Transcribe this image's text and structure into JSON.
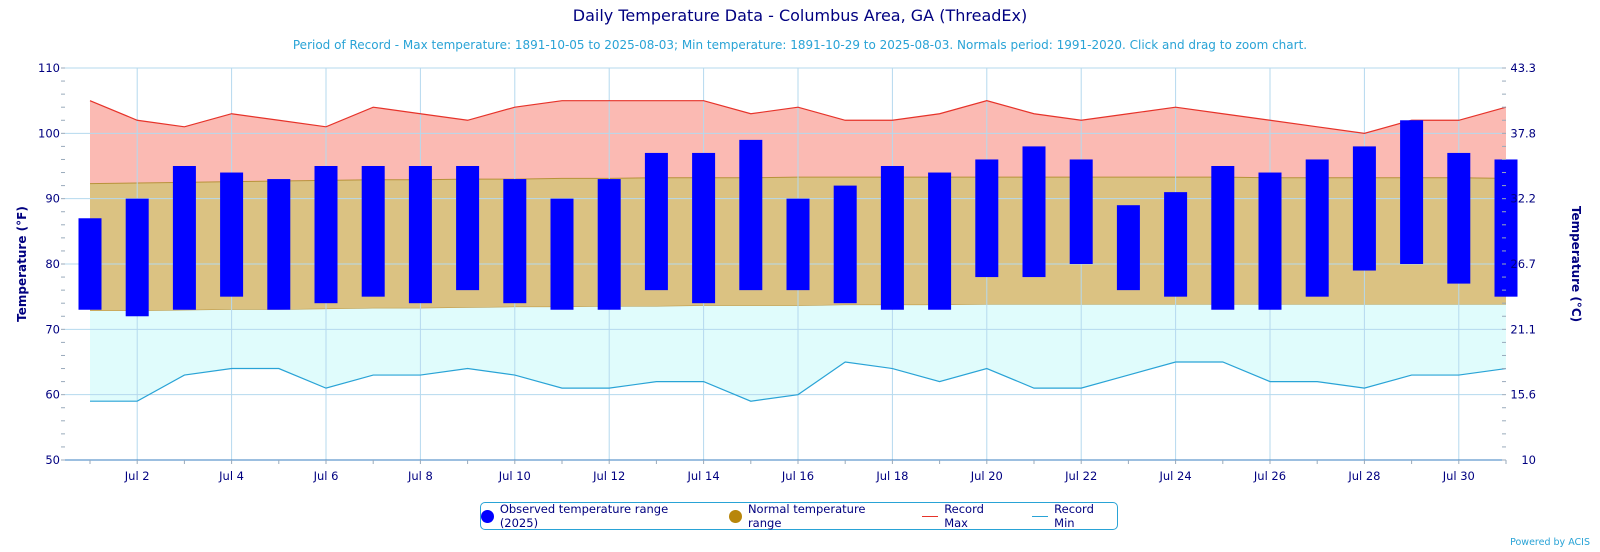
{
  "title": "Daily Temperature Data - Columbus Area, GA (ThreadEx)",
  "subtitle": "Period of Record - Max temperature: 1891-10-05 to 2025-08-03; Min temperature: 1891-10-29 to 2025-08-03. Normals period: 1991-2020. Click and drag to zoom chart.",
  "credit": "Powered by ACIS",
  "colors": {
    "observed": "#0000ff",
    "normal_fill": "#dbc282",
    "normal_legend": "#b8860b",
    "record_max_line": "#e6332a",
    "record_max_fill": "#fbbab3",
    "record_min_line": "#29a3d6",
    "record_min_fill": "#e0fcfc",
    "axis_text": "#000080",
    "grid": "#b5d9ee"
  },
  "chart_data": {
    "type": "bar",
    "days": [
      1,
      2,
      3,
      4,
      5,
      6,
      7,
      8,
      9,
      10,
      11,
      12,
      13,
      14,
      15,
      16,
      17,
      18,
      19,
      20,
      21,
      22,
      23,
      24,
      25,
      26,
      27,
      28,
      29,
      30,
      31
    ],
    "x_tick_labels": [
      "Jul 2",
      "Jul 4",
      "Jul 6",
      "Jul 8",
      "Jul 10",
      "Jul 12",
      "Jul 14",
      "Jul 16",
      "Jul 18",
      "Jul 20",
      "Jul 22",
      "Jul 24",
      "Jul 26",
      "Jul 28",
      "Jul 30"
    ],
    "x_tick_days": [
      2,
      4,
      6,
      8,
      10,
      12,
      14,
      16,
      18,
      20,
      22,
      24,
      26,
      28,
      30
    ],
    "ylabel_left": "Temperature (°F)",
    "ylabel_right": "Temperature (°C)",
    "ylim": [
      50,
      110
    ],
    "y_ticks_left": [
      "50",
      "60",
      "70",
      "80",
      "90",
      "100",
      "110"
    ],
    "y_ticks_right": [
      "10",
      "15.6",
      "21.1",
      "26.7",
      "32.2",
      "37.8",
      "43.3"
    ],
    "series": [
      {
        "name": "Observed temperature range (2025)",
        "low": [
          73,
          72,
          73,
          75,
          73,
          74,
          75,
          74,
          76,
          74,
          73,
          73,
          76,
          74,
          76,
          76,
          74,
          73,
          73,
          78,
          78,
          80,
          76,
          75,
          73,
          73,
          75,
          79,
          80,
          77,
          75
        ],
        "high": [
          87,
          90,
          95,
          94,
          93,
          95,
          95,
          95,
          95,
          93,
          90,
          93,
          97,
          97,
          99,
          90,
          92,
          95,
          94,
          96,
          98,
          96,
          89,
          91,
          95,
          94,
          96,
          98,
          102,
          97,
          96
        ]
      },
      {
        "name": "Normal temperature range",
        "low": [
          72.8,
          72.8,
          72.9,
          73.0,
          73.0,
          73.1,
          73.2,
          73.2,
          73.3,
          73.4,
          73.4,
          73.5,
          73.5,
          73.6,
          73.6,
          73.6,
          73.7,
          73.7,
          73.7,
          73.8,
          73.8,
          73.8,
          73.8,
          73.8,
          73.8,
          73.8,
          73.8,
          73.8,
          73.8,
          73.8,
          73.8
        ],
        "high": [
          92.3,
          92.4,
          92.5,
          92.6,
          92.7,
          92.8,
          92.9,
          92.9,
          93.0,
          93.0,
          93.1,
          93.1,
          93.2,
          93.2,
          93.2,
          93.3,
          93.3,
          93.3,
          93.3,
          93.3,
          93.3,
          93.3,
          93.3,
          93.3,
          93.3,
          93.2,
          93.2,
          93.2,
          93.2,
          93.2,
          93.1
        ]
      },
      {
        "name": "Record Max",
        "values": [
          105,
          102,
          101,
          103,
          102,
          101,
          104,
          103,
          102,
          104,
          105,
          105,
          105,
          105,
          103,
          104,
          102,
          102,
          103,
          105,
          103,
          102,
          103,
          104,
          103,
          102,
          101,
          100,
          102,
          102,
          104
        ]
      },
      {
        "name": "Record Min",
        "values": [
          59,
          59,
          63,
          64,
          64,
          61,
          63,
          63,
          64,
          63,
          61,
          61,
          62,
          62,
          59,
          60,
          65,
          64,
          62,
          64,
          61,
          61,
          63,
          65,
          65,
          62,
          62,
          61,
          63,
          63,
          64
        ]
      }
    ],
    "legend_position": "bottom-center",
    "grid": true
  },
  "legend": [
    {
      "label": "Observed temperature range (2025)",
      "kind": "dot",
      "color_key": "observed"
    },
    {
      "label": "Normal temperature range",
      "kind": "dot",
      "color_key": "normal_legend"
    },
    {
      "label": "Record Max",
      "kind": "line",
      "color_key": "record_max_line"
    },
    {
      "label": "Record Min",
      "kind": "line",
      "color_key": "record_min_line"
    }
  ]
}
